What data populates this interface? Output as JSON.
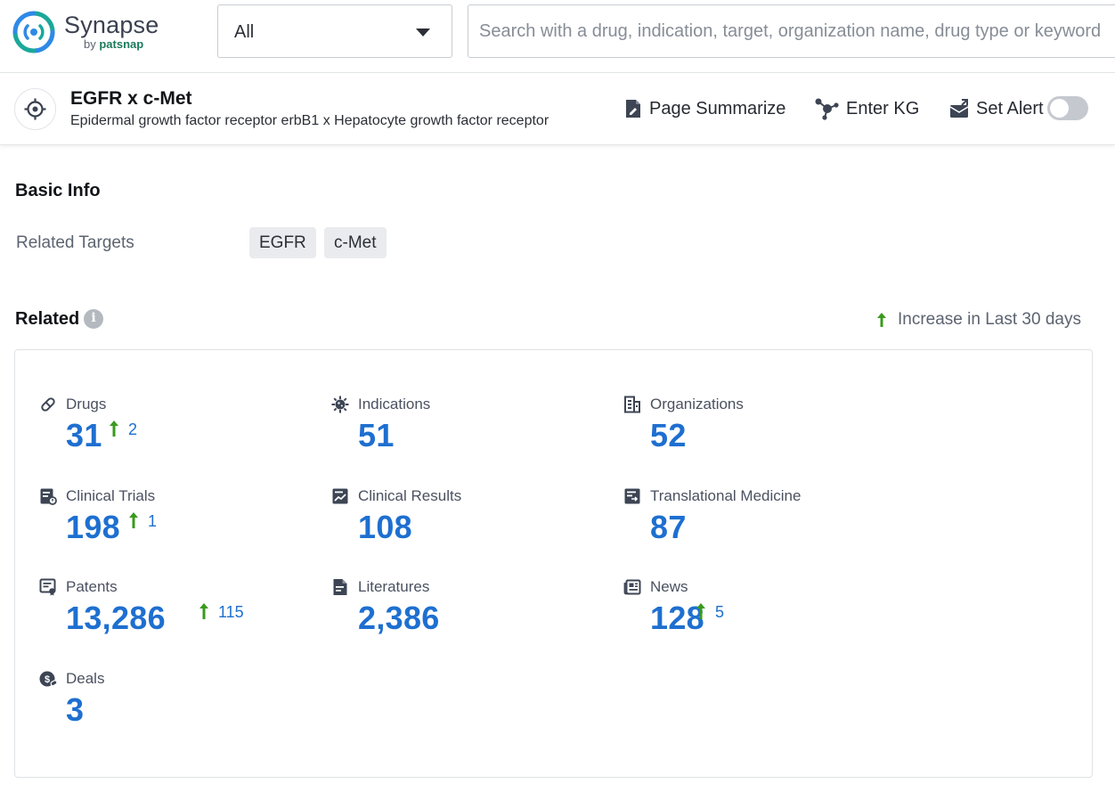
{
  "app": {
    "brand": "Synapse",
    "by_label": "by",
    "by_brand": "patsnap",
    "brand_color": "#1b7a5b"
  },
  "search": {
    "scope_value": "All",
    "placeholder": "Search with a drug, indication, target, organization name, drug type or keyword",
    "value": ""
  },
  "entity": {
    "icon": "target-icon",
    "title": "EGFR x c-Met",
    "subtitle": "Epidermal growth factor receptor erbB1 x Hepatocyte growth factor receptor"
  },
  "actions": {
    "page_summarize": "Page Summarize",
    "enter_kg": "Enter KG",
    "set_alert": "Set Alert",
    "alert_enabled": false
  },
  "basic_info": {
    "title": "Basic Info",
    "related_targets_label": "Related Targets",
    "targets": [
      "EGFR",
      "c-Met"
    ]
  },
  "related": {
    "title": "Related",
    "legend": "Increase in Last 30 days",
    "value_color": "#1e6fd0",
    "increase_color": "#3a9a1e",
    "stats": [
      {
        "label": "Drugs",
        "value": "31",
        "increase": "2",
        "icon": "pill-icon"
      },
      {
        "label": "Indications",
        "value": "51",
        "increase": null,
        "icon": "virus-icon"
      },
      {
        "label": "Organizations",
        "value": "52",
        "increase": null,
        "icon": "building-icon"
      },
      {
        "label": "Clinical Trials",
        "value": "198",
        "increase": "1",
        "icon": "clinical-trial-icon"
      },
      {
        "label": "Clinical Results",
        "value": "108",
        "increase": null,
        "icon": "chart-report-icon"
      },
      {
        "label": "Translational Medicine",
        "value": "87",
        "increase": null,
        "icon": "translational-doc-icon"
      },
      {
        "label": "Patents",
        "value": "13,286",
        "increase": "115",
        "icon": "patent-icon"
      },
      {
        "label": "Literatures",
        "value": "2,386",
        "increase": null,
        "icon": "document-icon"
      },
      {
        "label": "News",
        "value": "128",
        "increase": "5",
        "icon": "newspaper-icon"
      },
      {
        "label": "Deals",
        "value": "3",
        "increase": null,
        "icon": "deal-icon"
      }
    ]
  }
}
